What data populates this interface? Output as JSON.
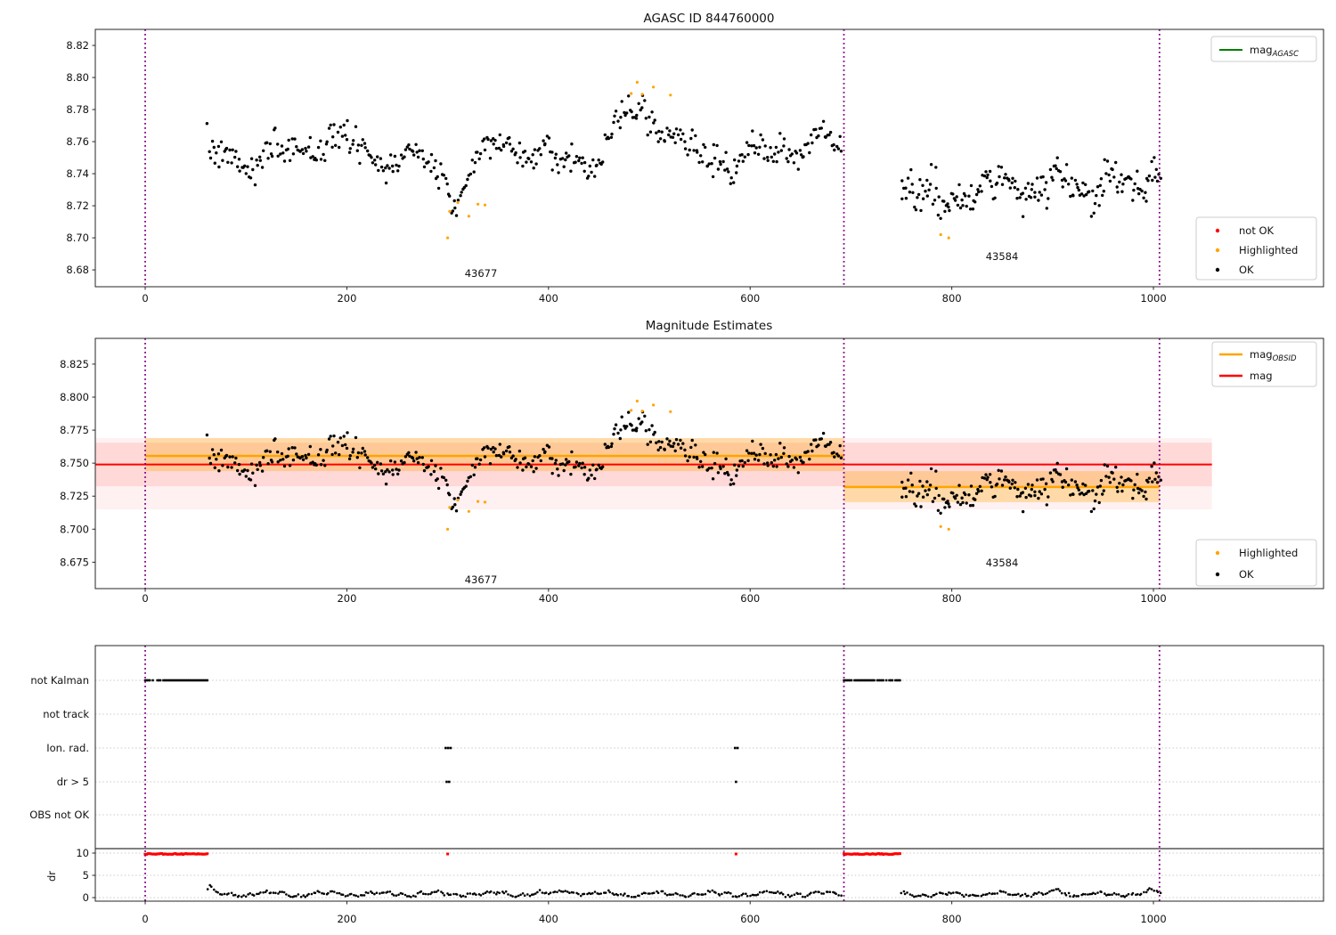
{
  "page": {
    "background": "#ffffff"
  },
  "colors": {
    "ok": "#000000",
    "not_ok": "#ff0000",
    "highlighted": "#ffa500",
    "mag_agasc": "#008000",
    "mag_obsid": "#ffa500",
    "mag": "#ff0000",
    "vline": "#800080",
    "band_red": "rgba(255,0,0,0.10)",
    "band_red_wide": "rgba(255,0,0,0.055)",
    "band_orange": "rgba(255,165,0,0.30)",
    "grid": "#c9c9c9",
    "frame": "#262626"
  },
  "chart_data": [
    {
      "id": "top",
      "type": "scatter",
      "title": "AGASC ID 844760000",
      "ylim": [
        8.6695,
        8.83
      ],
      "yticks": [
        8.68,
        8.7,
        8.72,
        8.74,
        8.76,
        8.78,
        8.8,
        8.82
      ],
      "ytick_decimals": 2,
      "xticks": [
        0,
        200,
        400,
        600,
        800,
        1000
      ],
      "xlim": [
        -49.5,
        1168.7
      ],
      "vlines": [
        0,
        693,
        1006
      ],
      "annotations": [
        {
          "text": "43677",
          "x": 333,
          "y": 8.678
        },
        {
          "text": "43584",
          "x": 850,
          "y": 8.688
        }
      ],
      "legends": {
        "mag_agasc": {
          "main": "mag",
          "sub": "AGASC"
        },
        "status": {
          "not_ok": "not OK",
          "highlighted": "Highlighted",
          "ok": "OK"
        }
      },
      "highlighted_points": [
        [
          300,
          8.7
        ],
        [
          302,
          8.7165
        ],
        [
          310,
          8.722
        ],
        [
          321,
          8.7135
        ],
        [
          330,
          8.721
        ],
        [
          337,
          8.7205
        ],
        [
          482,
          8.79
        ],
        [
          488,
          8.797
        ],
        [
          493,
          8.7895
        ],
        [
          504,
          8.794
        ],
        [
          521,
          8.789
        ],
        [
          789,
          8.702
        ],
        [
          797,
          8.7
        ]
      ],
      "scatter_approx": {
        "seed": 7,
        "segments": [
          {
            "x0": 62,
            "x1": 690,
            "n": 430,
            "base": 8.754,
            "waves": [
              [
                0.006,
                160,
                0.8
              ],
              [
                0.0055,
                68,
                2.0
              ],
              [
                0.003,
                34,
                4.0
              ]
            ],
            "features": [
              [
                -0.026,
                312,
                22
              ],
              [
                0.024,
                490,
                24
              ]
            ],
            "noise": 0.0048,
            "min": 8.696,
            "max": 8.801
          },
          {
            "x0": 750,
            "x1": 1007,
            "n": 198,
            "base": 8.7315,
            "waves": [
              [
                0.007,
                60,
                1.2
              ],
              [
                0.004,
                25,
                0.3
              ]
            ],
            "features": [
              [
                -0.018,
                790,
                13
              ],
              [
                0.014,
                1000,
                12
              ]
            ],
            "noise": 0.0052,
            "min": 8.699,
            "max": 8.79
          }
        ]
      }
    },
    {
      "id": "middle",
      "type": "scatter",
      "title": "Magnitude Estimates",
      "ylim": [
        8.655,
        8.8445
      ],
      "yticks": [
        8.675,
        8.7,
        8.725,
        8.75,
        8.775,
        8.8,
        8.825
      ],
      "ytick_decimals": 3,
      "xticks": [
        0,
        200,
        400,
        600,
        800,
        1000
      ],
      "xlim": [
        -49.5,
        1168.7
      ],
      "vlines": [
        0,
        693,
        1006
      ],
      "mag_line": {
        "value": 8.749,
        "x_extent": [
          -49.5,
          1058
        ]
      },
      "mag_band": [
        8.7325,
        8.7655
      ],
      "mag_band_wide": [
        8.715,
        8.769
      ],
      "obsid_lines": [
        {
          "obsid": "43677",
          "x0": 0,
          "x1": 693,
          "mag": 8.7555,
          "band": [
            8.744,
            8.769
          ]
        },
        {
          "obsid": "43584",
          "x0": 693,
          "x1": 1006,
          "mag": 8.732,
          "band": [
            8.7205,
            8.744
          ]
        }
      ],
      "annotations": [
        {
          "text": "43677",
          "x": 333,
          "y": 8.662
        },
        {
          "text": "43584",
          "x": 850,
          "y": 8.675
        }
      ],
      "legends": {
        "mag_obsid": {
          "main": "mag",
          "sub": "OBSID"
        },
        "mag_label": "mag",
        "status": {
          "highlighted": "Highlighted",
          "ok": "OK"
        }
      }
    },
    {
      "id": "bottom",
      "type": "flags",
      "rows": [
        "not Kalman",
        "not track",
        "Ion. rad.",
        "dr > 5",
        "OBS not OK"
      ],
      "xticks": [
        0,
        200,
        400,
        600,
        800,
        1000
      ],
      "xlim": [
        -49.5,
        1168.7
      ],
      "vlines": [
        0,
        693,
        1006
      ],
      "flag_runs": [
        {
          "row": "not Kalman",
          "x0": 0,
          "x1": 62
        },
        {
          "row": "not Kalman",
          "x0": 693,
          "x1": 750
        }
      ],
      "flag_points": [
        {
          "row": "Ion. rad.",
          "x": 298
        },
        {
          "row": "Ion. rad.",
          "x": 300.5
        },
        {
          "row": "Ion. rad.",
          "x": 303
        },
        {
          "row": "Ion. rad.",
          "x": 585
        },
        {
          "row": "Ion. rad.",
          "x": 587.5
        },
        {
          "row": "dr > 5",
          "x": 299
        },
        {
          "row": "dr > 5",
          "x": 301.5
        },
        {
          "row": "dr > 5",
          "x": 586
        }
      ],
      "dr_axis": {
        "label": "dr",
        "ticks": [
          10,
          5,
          0
        ],
        "hline": 11
      },
      "dr_red_runs": [
        {
          "x0": 0,
          "x1": 62,
          "value": 9.8
        },
        {
          "x0": 693,
          "x1": 750,
          "value": 9.8
        }
      ],
      "dr_red_points": [
        {
          "x": 300,
          "value": 9.8
        },
        {
          "x": 586,
          "value": 9.8
        }
      ],
      "dr_series_approx": {
        "seed": 11,
        "segments": [
          {
            "x0": 62,
            "x1": 690,
            "n": 300,
            "base": 0.8,
            "waves": [
              [
                0.4,
                55,
                0.0
              ],
              [
                0.25,
                17,
                1.5
              ]
            ],
            "features": [
              [
                1.7,
                64,
                3
              ],
              [
                0.9,
                418,
                8
              ]
            ],
            "noise": 0.16,
            "min": 0.15,
            "max": 3.2
          },
          {
            "x0": 750,
            "x1": 1007,
            "n": 125,
            "base": 0.75,
            "waves": [
              [
                0.35,
                50,
                2.0
              ],
              [
                0.2,
                16,
                0.5
              ]
            ],
            "features": [
              [
                1.2,
                905,
                4
              ],
              [
                0.8,
                1000,
                6
              ]
            ],
            "noise": 0.16,
            "min": 0.15,
            "max": 3.0
          }
        ]
      }
    }
  ]
}
